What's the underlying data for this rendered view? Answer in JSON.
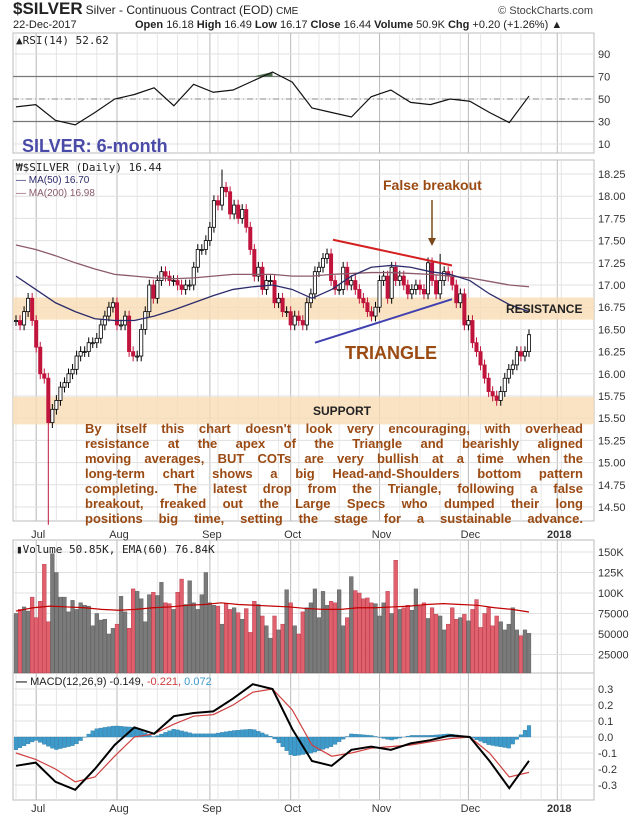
{
  "header": {
    "symbol": "$SILVER",
    "name": "Silver - Continuous Contract (EOD)",
    "exchange": "CME",
    "copyright": "© StockCharts.com",
    "date": "22-Dec-2017",
    "open_label": "Open",
    "open": "16.18",
    "high_label": "High",
    "high": "16.49",
    "low_label": "Low",
    "low": "16.17",
    "close_label": "Close",
    "close": "16.44",
    "volume_label": "Volume",
    "volume": "50.9K",
    "chg_label": "Chg",
    "chg": "+0.20 (+1.26%)"
  },
  "colors": {
    "up": "#000000",
    "down": "#c0143c",
    "ma50": "#2b2b6b",
    "ma200": "#8b5a6b",
    "volume_up": "#7a7a7a",
    "volume_down": "#e0606e",
    "ema": "#c00000",
    "macd": "#000000",
    "signal": "#d04040",
    "histogram": "#3d9bcc",
    "annotation": "#9a4a12",
    "title_accent": "#4a4aa8",
    "band": "#f8dcb4"
  },
  "chart_data": [
    {
      "type": "line",
      "panel": "rsi",
      "legend": "RSI(14) 52.62",
      "yticks": [
        90,
        70,
        50,
        30,
        10
      ],
      "ylim": [
        0,
        100
      ],
      "overbought": 70,
      "oversold": 30,
      "midline": 50,
      "values": [
        43,
        45,
        31,
        27,
        38,
        50,
        54,
        60,
        44,
        63,
        56,
        58,
        66,
        74,
        65,
        42,
        38,
        34,
        52,
        58,
        47,
        45,
        50,
        48,
        38,
        29,
        52.62
      ]
    },
    {
      "type": "candlestick",
      "panel": "price",
      "legend": "$SILVER (Daily) 16.44",
      "ma50_label": "MA(50) 16.70",
      "ma200_label": "MA(200) 16.98",
      "yticks": [
        "18.25",
        "18.00",
        "17.75",
        "17.50",
        "17.25",
        "17.00",
        "16.75",
        "16.50",
        "16.25",
        "16.00",
        "15.75",
        "15.50",
        "15.25",
        "15.00",
        "14.75",
        "14.50"
      ],
      "xticks": [
        "Jul",
        "Aug",
        "Sep",
        "Oct",
        "Nov",
        "Dec",
        "2018"
      ],
      "closes": [
        16.6,
        16.55,
        16.7,
        16.85,
        16.6,
        16.3,
        16.0,
        15.95,
        15.45,
        15.6,
        15.7,
        15.85,
        15.9,
        16.0,
        16.05,
        16.2,
        16.25,
        16.25,
        16.35,
        16.35,
        16.4,
        16.55,
        16.65,
        16.75,
        16.8,
        16.55,
        16.55,
        16.65,
        16.25,
        16.2,
        16.2,
        16.5,
        16.7,
        17.0,
        16.85,
        17.05,
        17.15,
        17.1,
        17.05,
        17.05,
        17.0,
        16.95,
        17.0,
        17.0,
        17.2,
        17.4,
        17.4,
        17.5,
        17.65,
        17.95,
        17.9,
        18.1,
        18.05,
        17.8,
        17.9,
        17.75,
        17.85,
        17.65,
        17.4,
        17.1,
        17.2,
        16.95,
        17.05,
        17.05,
        16.8,
        16.85,
        16.7,
        16.7,
        16.55,
        16.65,
        16.6,
        16.55,
        16.8,
        16.9,
        17.15,
        17.2,
        17.3,
        17.35,
        17.05,
        16.95,
        16.95,
        17.2,
        17.0,
        17.05,
        16.95,
        16.85,
        16.8,
        16.7,
        16.65,
        16.75,
        17.05,
        17.1,
        16.85,
        17.2,
        17.05,
        17.1,
        17.0,
        16.9,
        16.95,
        17.0,
        16.95,
        16.9,
        17.25,
        17.05,
        16.9,
        17.05,
        17.15,
        17.1,
        17.0,
        16.8,
        16.9,
        16.55,
        16.6,
        16.35,
        16.25,
        16.1,
        15.95,
        15.8,
        15.75,
        15.7,
        15.8,
        15.95,
        16.05,
        16.1,
        16.25,
        16.2,
        16.25,
        16.44
      ],
      "extremes": [
        {
          "bar": 8,
          "low": 14.3
        },
        {
          "bar": 51,
          "high": 18.3
        },
        {
          "bar": 105,
          "high": 17.35
        }
      ],
      "ma50": [
        17.1,
        16.95,
        16.8,
        16.7,
        16.62,
        16.6,
        16.6,
        16.65,
        16.72,
        16.8,
        16.88,
        16.95,
        16.98,
        17.0,
        16.95,
        16.85,
        16.95,
        17.1,
        17.2,
        17.22,
        17.2,
        17.15,
        17.12,
        17.05,
        16.9,
        16.78,
        16.7
      ],
      "ma200": [
        17.45,
        17.4,
        17.33,
        17.25,
        17.18,
        17.12,
        17.1,
        17.08,
        17.07,
        17.08,
        17.1,
        17.12,
        17.12,
        17.12,
        17.1,
        17.1,
        17.12,
        17.13,
        17.14,
        17.14,
        17.13,
        17.12,
        17.1,
        17.08,
        17.04,
        17.0,
        16.98
      ]
    },
    {
      "type": "bar",
      "panel": "volume",
      "legend": "Volume 50.85K, EMA(60) 76.84K",
      "yticks": [
        "150K",
        "125K",
        "100K",
        "75000",
        "50000",
        "25000"
      ],
      "values_k": [
        75,
        80,
        83,
        78,
        95,
        70,
        90,
        135,
        65,
        148,
        125,
        95,
        95,
        77,
        91,
        80,
        88,
        85,
        84,
        60,
        75,
        67,
        68,
        50,
        57,
        62,
        96,
        77,
        57,
        105,
        102,
        93,
        65,
        98,
        101,
        97,
        113,
        88,
        87,
        80,
        101,
        117,
        86,
        115,
        88,
        80,
        98,
        125,
        88,
        85,
        84,
        62,
        87,
        80,
        82,
        76,
        68,
        81,
        52,
        90,
        86,
        72,
        60,
        45,
        72,
        55,
        62,
        104,
        88,
        60,
        50,
        77,
        82,
        88,
        105,
        70,
        102,
        85,
        90,
        88,
        104,
        60,
        70,
        120,
        103,
        100,
        93,
        94,
        88,
        87,
        72,
        88,
        102,
        75,
        140,
        80,
        82,
        85,
        79,
        105,
        84,
        88,
        69,
        82,
        74,
        72,
        55,
        62,
        82,
        68,
        70,
        74,
        66,
        80,
        92,
        58,
        75,
        82,
        60,
        72,
        65,
        55,
        62,
        82,
        55,
        48,
        55,
        50.85
      ],
      "ema_k": [
        78,
        82,
        84,
        83,
        82,
        80,
        79,
        80,
        82,
        83,
        85,
        86,
        88,
        86,
        85,
        84,
        83,
        81,
        80,
        80,
        82,
        82,
        83,
        84,
        86,
        87,
        86,
        85,
        82,
        80,
        76.84
      ]
    },
    {
      "type": "line",
      "panel": "macd",
      "legend_prefix": "MACD(12,26,9)",
      "legend_macd": "-0.149,",
      "legend_signal": "-0.221,",
      "legend_hist": "0.072",
      "yticks": [
        "0.3",
        "0.2",
        "0.1",
        "0.0",
        "-0.1",
        "-0.2",
        "-0.3"
      ],
      "xticks": [
        "Jul",
        "Aug",
        "Sep",
        "Oct",
        "Nov",
        "Dec",
        "2018"
      ],
      "macd": [
        -0.18,
        -0.16,
        -0.28,
        -0.33,
        -0.2,
        -0.05,
        0.06,
        0.02,
        0.13,
        0.15,
        0.16,
        0.24,
        0.33,
        0.3,
        0.05,
        -0.15,
        -0.18,
        -0.08,
        -0.06,
        -0.08,
        -0.04,
        -0.02,
        0.01,
        0.0,
        -0.15,
        -0.32,
        -0.149
      ],
      "signal": [
        -0.1,
        -0.14,
        -0.2,
        -0.28,
        -0.25,
        -0.12,
        0.0,
        0.02,
        0.08,
        0.13,
        0.14,
        0.2,
        0.28,
        0.3,
        0.17,
        -0.05,
        -0.12,
        -0.1,
        -0.07,
        -0.06,
        -0.05,
        -0.03,
        -0.01,
        0.0,
        -0.1,
        -0.25,
        -0.221
      ]
    }
  ],
  "annotations": {
    "chart_title": "SILVER: 6-month",
    "false_breakout": "False breakout",
    "triangle": "TRIANGLE",
    "resistance": "RESISTANCE",
    "support": "SUPPORT",
    "note_lines": [
      "By itself this chart doesn't look very encouraging, with overhead",
      "resistance at the apex of the Triangle and bearishly aligned",
      "moving averages, BUT COTs are very bullish at a time when the",
      "long-term chart shows a big Head-and-Shoulders bottom pattern",
      "completing. The latest drop from the Triangle, following a false",
      "breakout, freaked out the Large Specs who dumped their long",
      "positions big time, setting the stage for a sustainable advance."
    ]
  }
}
